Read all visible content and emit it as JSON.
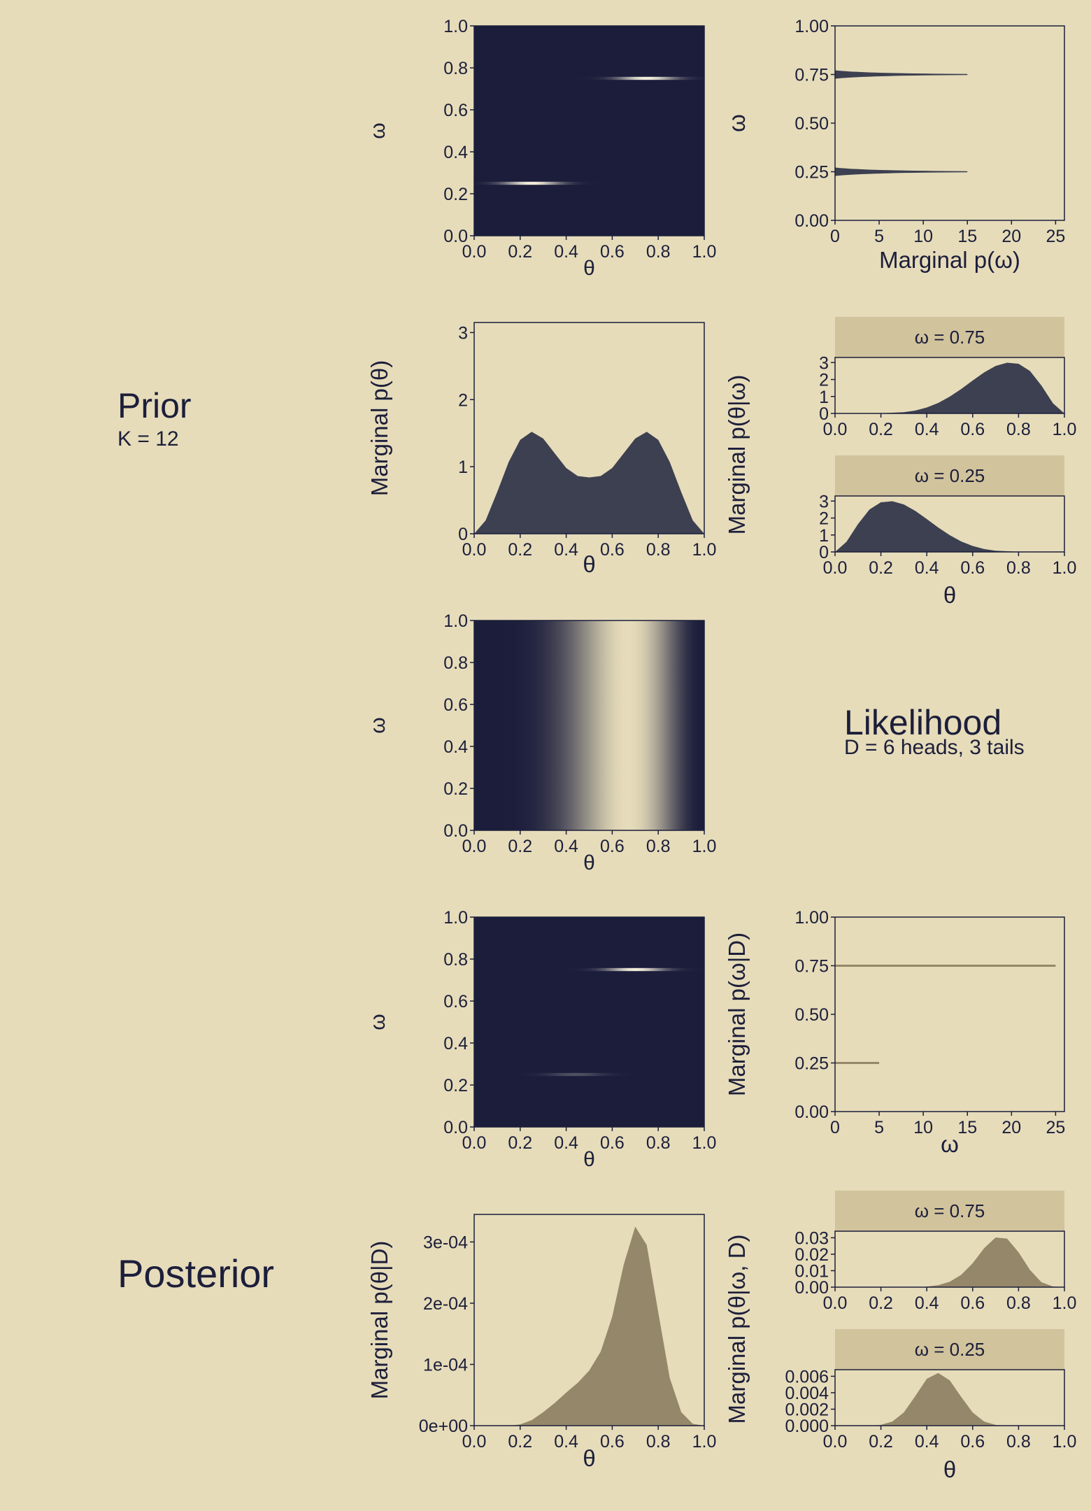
{
  "colors": {
    "background": "#e6dcba",
    "panel_dark": "#1b1d3b",
    "prior_fill": "#3c4050",
    "posterior_fill": "#958769",
    "strip_bg": "#d1c39c",
    "axis": "#1c1e3a"
  },
  "sections": {
    "prior": {
      "title": "Prior",
      "subtitle": "K = 12"
    },
    "likelihood": {
      "title": "Likelihood",
      "subtitle": "D = 6 heads, 3 tails"
    },
    "posterior": {
      "title": "Posterior",
      "subtitle": ""
    }
  },
  "chart_data": [
    {
      "id": "prior-joint",
      "type": "heatmap",
      "xlabel": "θ",
      "ylabel": "ω",
      "xlim": [
        0,
        1
      ],
      "ylim": [
        0,
        1
      ],
      "xticks": [
        "0.0",
        "0.2",
        "0.4",
        "0.6",
        "0.8",
        "1.0"
      ],
      "yticks": [
        "0.0",
        "0.2",
        "0.4",
        "0.6",
        "0.8",
        "1.0"
      ],
      "modes": [
        {
          "omega": 0.75,
          "theta_peak": 0.75,
          "intensity": 1.0
        },
        {
          "omega": 0.25,
          "theta_peak": 0.25,
          "intensity": 1.0
        }
      ]
    },
    {
      "id": "prior-omega-marginal",
      "type": "area",
      "xlabel": "Marginal p(ω)",
      "ylabel": "ω",
      "xlim": [
        0,
        26
      ],
      "ylim": [
        0,
        1
      ],
      "xticks": [
        "0",
        "5",
        "10",
        "15",
        "20",
        "25"
      ],
      "yticks": [
        "0.00",
        "0.25",
        "0.50",
        "0.75",
        "1.00"
      ],
      "spikes": [
        {
          "omega": 0.75,
          "height": 15
        },
        {
          "omega": 0.25,
          "height": 15
        }
      ]
    },
    {
      "id": "prior-theta-marginal",
      "type": "area",
      "xlabel": "θ",
      "ylabel": "Marginal p(θ)",
      "xlim": [
        0,
        1
      ],
      "ylim": [
        0,
        3.15
      ],
      "xticks": [
        "0.0",
        "0.2",
        "0.4",
        "0.6",
        "0.8",
        "1.0"
      ],
      "yticks": [
        "0",
        "1",
        "2",
        "3"
      ],
      "x": [
        0,
        0.05,
        0.1,
        0.15,
        0.2,
        0.25,
        0.3,
        0.35,
        0.4,
        0.45,
        0.5,
        0.55,
        0.6,
        0.65,
        0.7,
        0.75,
        0.8,
        0.85,
        0.9,
        0.95,
        1
      ],
      "y": [
        0,
        0.2,
        0.62,
        1.07,
        1.4,
        1.52,
        1.42,
        1.2,
        0.98,
        0.86,
        0.84,
        0.86,
        0.98,
        1.2,
        1.42,
        1.52,
        1.4,
        1.07,
        0.62,
        0.2,
        0
      ]
    },
    {
      "id": "prior-theta-given-omega",
      "type": "area",
      "xlabel": "θ",
      "ylabel": "Marginal p(θ|ω)",
      "xticks": [
        "0.0",
        "0.2",
        "0.4",
        "0.6",
        "0.8",
        "1.0"
      ],
      "panels": [
        {
          "label": "ω = 0.75",
          "ylim": [
            0,
            3.3
          ],
          "yticks": [
            "0",
            "1",
            "2",
            "3"
          ],
          "x": [
            0,
            0.1,
            0.2,
            0.3,
            0.35,
            0.4,
            0.45,
            0.5,
            0.55,
            0.6,
            0.65,
            0.7,
            0.75,
            0.8,
            0.85,
            0.9,
            0.95,
            1
          ],
          "y": [
            0,
            0,
            0.01,
            0.07,
            0.17,
            0.35,
            0.62,
            0.99,
            1.44,
            1.94,
            2.42,
            2.8,
            2.99,
            2.93,
            2.5,
            1.64,
            0.6,
            0
          ]
        },
        {
          "label": "ω = 0.25",
          "ylim": [
            0,
            3.3
          ],
          "yticks": [
            "0",
            "1",
            "2",
            "3"
          ],
          "x": [
            0,
            0.05,
            0.1,
            0.15,
            0.2,
            0.25,
            0.3,
            0.35,
            0.4,
            0.45,
            0.5,
            0.55,
            0.6,
            0.65,
            0.7,
            0.8,
            0.9,
            1
          ],
          "y": [
            0,
            0.6,
            1.64,
            2.5,
            2.93,
            2.99,
            2.8,
            2.42,
            1.94,
            1.44,
            0.99,
            0.62,
            0.35,
            0.17,
            0.07,
            0.01,
            0,
            0
          ]
        }
      ]
    },
    {
      "id": "likelihood-joint",
      "type": "heatmap",
      "xlabel": "θ",
      "ylabel": "ω",
      "xlim": [
        0,
        1
      ],
      "ylim": [
        0,
        1
      ],
      "xticks": [
        "0.0",
        "0.2",
        "0.4",
        "0.6",
        "0.8",
        "1.0"
      ],
      "yticks": [
        "0.0",
        "0.2",
        "0.4",
        "0.6",
        "0.8",
        "1.0"
      ],
      "heads": 6,
      "tails": 3
    },
    {
      "id": "posterior-joint",
      "type": "heatmap",
      "xlabel": "θ",
      "ylabel": "ω",
      "xlim": [
        0,
        1
      ],
      "ylim": [
        0,
        1
      ],
      "xticks": [
        "0.0",
        "0.2",
        "0.4",
        "0.6",
        "0.8",
        "1.0"
      ],
      "yticks": [
        "0.0",
        "0.2",
        "0.4",
        "0.6",
        "0.8",
        "1.0"
      ],
      "modes": [
        {
          "omega": 0.75,
          "theta_peak": 0.7,
          "intensity": 1.0
        },
        {
          "omega": 0.25,
          "theta_peak": 0.44,
          "intensity": 0.25
        }
      ]
    },
    {
      "id": "posterior-omega-marginal",
      "type": "bar",
      "xlabel": "ω",
      "ylabel": "Marginal p(ω|D)",
      "xlim": [
        0,
        26
      ],
      "ylim": [
        0,
        1
      ],
      "xticks": [
        "0",
        "5",
        "10",
        "15",
        "20",
        "25"
      ],
      "yticks": [
        "0.00",
        "0.25",
        "0.50",
        "0.75",
        "1.00"
      ],
      "lines": [
        {
          "omega": 0.75,
          "value": 25
        },
        {
          "omega": 0.25,
          "value": 5
        }
      ]
    },
    {
      "id": "posterior-theta-marginal",
      "type": "area",
      "xlabel": "θ",
      "ylabel": "Marginal p(θ|D)",
      "xlim": [
        0,
        1
      ],
      "ylim": [
        0,
        0.000345
      ],
      "xticks": [
        "0.0",
        "0.2",
        "0.4",
        "0.6",
        "0.8",
        "1.0"
      ],
      "yticks": [
        "0e+00",
        "1e-04",
        "2e-04",
        "3e-04"
      ],
      "ytick_values": [
        0,
        0.0001,
        0.0002,
        0.0003
      ],
      "x": [
        0,
        0.15,
        0.2,
        0.25,
        0.3,
        0.35,
        0.4,
        0.45,
        0.5,
        0.55,
        0.6,
        0.65,
        0.7,
        0.75,
        0.8,
        0.85,
        0.9,
        0.95,
        1
      ],
      "y": [
        0,
        0,
        2e-06,
        9e-06,
        2.2e-05,
        3.7e-05,
        5.4e-05,
        7e-05,
        9e-05,
        0.000121,
        0.000178,
        0.000263,
        0.000325,
        0.000295,
        0.000185,
        7.8e-05,
        2.2e-05,
        3e-06,
        0
      ]
    },
    {
      "id": "posterior-theta-given-omega",
      "type": "area",
      "xlabel": "θ",
      "ylabel": "Marginal p(θ|ω, D)",
      "xticks": [
        "0.0",
        "0.2",
        "0.4",
        "0.6",
        "0.8",
        "1.0"
      ],
      "panels": [
        {
          "label": "ω = 0.75",
          "ylim": [
            0,
            0.034
          ],
          "yticks": [
            "0.00",
            "0.01",
            "0.02",
            "0.03"
          ],
          "ytick_values": [
            0,
            0.01,
            0.02,
            0.03
          ],
          "x": [
            0,
            0.35,
            0.4,
            0.45,
            0.5,
            0.55,
            0.6,
            0.65,
            0.7,
            0.75,
            0.8,
            0.85,
            0.9,
            0.95,
            1
          ],
          "y": [
            0,
            0,
            0.0003,
            0.0012,
            0.0033,
            0.0075,
            0.0145,
            0.0237,
            0.0302,
            0.0295,
            0.0212,
            0.0104,
            0.003,
            0.0004,
            0
          ]
        },
        {
          "label": "ω = 0.25",
          "ylim": [
            0,
            0.0068
          ],
          "yticks": [
            "0.000",
            "0.002",
            "0.004",
            "0.006"
          ],
          "ytick_values": [
            0,
            0.002,
            0.004,
            0.006
          ],
          "x": [
            0,
            0.15,
            0.2,
            0.25,
            0.3,
            0.35,
            0.4,
            0.45,
            0.5,
            0.55,
            0.6,
            0.65,
            0.7,
            0.75,
            0.8,
            1
          ],
          "y": [
            0,
            0,
            0.0001,
            0.0005,
            0.0016,
            0.0036,
            0.0057,
            0.0064,
            0.0055,
            0.0035,
            0.0016,
            0.0005,
            0.0001,
            0,
            0,
            0
          ]
        }
      ]
    }
  ]
}
